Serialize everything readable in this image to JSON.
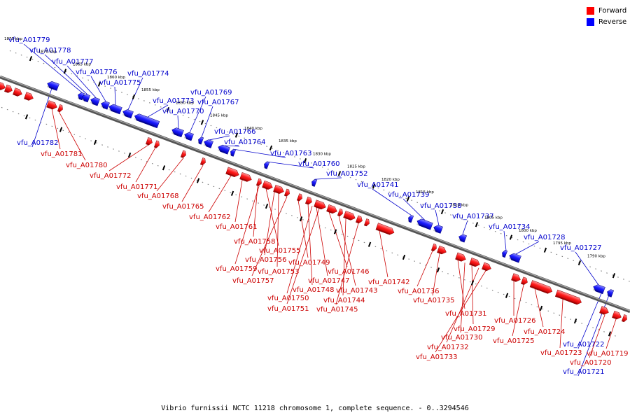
{
  "legend": {
    "forward_label": "Forward",
    "reverse_label": "Reverse",
    "forward_color": "#ff0000",
    "reverse_color": "#0000ff"
  },
  "caption": "Vibrio furnissii NCTC 11218 chromosome 1, complete sequence. - 0..3294546",
  "scale_labels": [
    "1875 kbp",
    "1870 kbp",
    "1865 kbp",
    "1860 kbp",
    "1855 kbp",
    "1850 kbp",
    "1845 kbp",
    "1840 kbp",
    "1835 kbp",
    "1830 kbp",
    "1825 kbp",
    "1820 kbp",
    "1815 kbp",
    "1810 kbp",
    "1805 kbp",
    "1800 kbp",
    "1795 kbp",
    "1790 kbp"
  ],
  "reverse_genes": [
    "vfu_A01779",
    "vfu_A01778",
    "vfu_A01777",
    "vfu_A01776",
    "vfu_A01775",
    "vfu_A01774",
    "vfu_A01773",
    "vfu_A01770",
    "vfu_A01769",
    "vfu_A01767",
    "vfu_A01766",
    "vfu_A01764",
    "vfu_A01763",
    "vfu_A01760",
    "vfu_A01752",
    "vfu_A01741",
    "vfu_A01739",
    "vfu_A01738",
    "vfu_A01737",
    "vfu_A01734",
    "vfu_A01728",
    "vfu_A01727",
    "vfu_A01782",
    "vfu_A01722",
    "vfu_A01721"
  ],
  "forward_genes": [
    "vfu_A01781",
    "vfu_A01780",
    "vfu_A01772",
    "vfu_A01771",
    "vfu_A01768",
    "vfu_A01765",
    "vfu_A01762",
    "vfu_A01761",
    "vfu_A01758",
    "vfu_A01755",
    "vfu_A01756",
    "vfu_A01759",
    "vfu_A01753",
    "vfu_A01757",
    "vfu_A01749",
    "vfu_A01747",
    "vfu_A01748",
    "vfu_A01750",
    "vfu_A01751",
    "vfu_A01746",
    "vfu_A01743",
    "vfu_A01744",
    "vfu_A01745",
    "vfu_A01742",
    "vfu_A01736",
    "vfu_A01735",
    "vfu_A01731",
    "vfu_A01729",
    "vfu_A01730",
    "vfu_A01732",
    "vfu_A01733",
    "vfu_A01726",
    "vfu_A01724",
    "vfu_A01725",
    "vfu_A01723",
    "vfu_A01719",
    "vfu_A01720"
  ]
}
